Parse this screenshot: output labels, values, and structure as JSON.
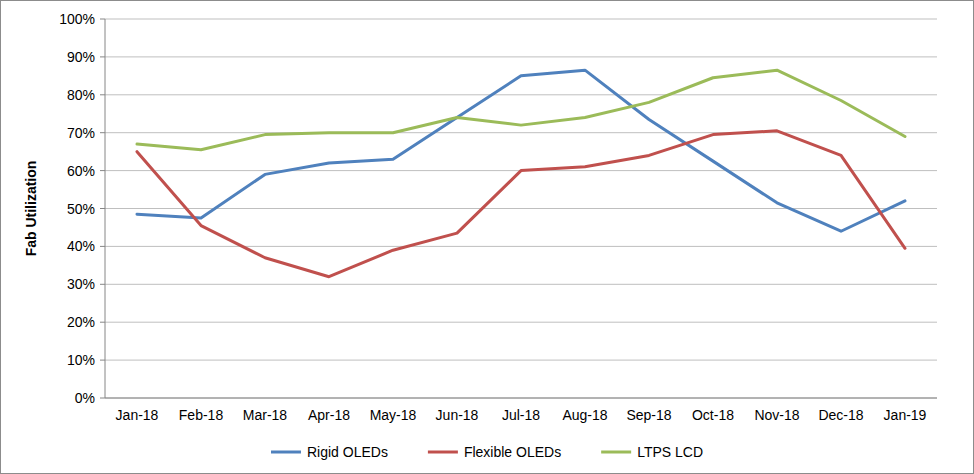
{
  "chart_data": {
    "type": "line",
    "y_label": "Fab Utilization",
    "categories": [
      "Jan-18",
      "Feb-18",
      "Mar-18",
      "Apr-18",
      "May-18",
      "Jun-18",
      "Jul-18",
      "Aug-18",
      "Sep-18",
      "Oct-18",
      "Nov-18",
      "Dec-18",
      "Jan-19"
    ],
    "series": [
      {
        "name": "Rigid OLEDs",
        "color": "#4f81bd",
        "values": [
          48.5,
          47.5,
          59,
          62,
          63,
          74,
          85,
          86.5,
          73.5,
          62.5,
          51.5,
          44,
          52
        ]
      },
      {
        "name": "Flexible OLEDs",
        "color": "#c0504d",
        "values": [
          65,
          45.5,
          37,
          32,
          39,
          43.5,
          60,
          61,
          64,
          69.5,
          70.5,
          64,
          39.5
        ]
      },
      {
        "name": "LTPS LCD",
        "color": "#9bbb59",
        "values": [
          67,
          65.5,
          69.5,
          70,
          70,
          74,
          72,
          74,
          78,
          84.5,
          86.5,
          78.5,
          69
        ]
      }
    ],
    "ylim": [
      0,
      100
    ],
    "yticks": [
      {
        "value": 0,
        "label": "0%"
      },
      {
        "value": 10,
        "label": "10%"
      },
      {
        "value": 20,
        "label": "20%"
      },
      {
        "value": 30,
        "label": "30%"
      },
      {
        "value": 40,
        "label": "40%"
      },
      {
        "value": 50,
        "label": "50%"
      },
      {
        "value": 60,
        "label": "60%"
      },
      {
        "value": 70,
        "label": "70%"
      },
      {
        "value": 80,
        "label": "80%"
      },
      {
        "value": 90,
        "label": "90%"
      },
      {
        "value": 100,
        "label": "100%"
      }
    ],
    "grid": true,
    "legend": "bottom"
  }
}
